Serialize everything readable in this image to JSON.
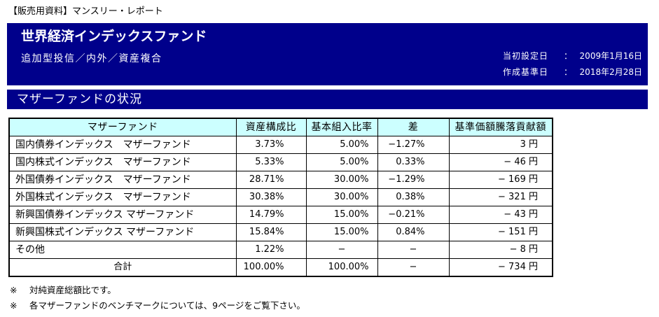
{
  "doc_label": "【販売用資料】マンスリー・レポート",
  "header": {
    "fund_name": "世界経済インデックスファンド",
    "fund_type": "追加型投信／内外／資産複合",
    "dates": [
      {
        "label": "当初設定日",
        "sep": "：",
        "value": "2009年1月16日"
      },
      {
        "label": "作成基準日",
        "sep": "：",
        "value": "2018年2月28日"
      }
    ]
  },
  "section": {
    "title": "マザーファンドの状況"
  },
  "table": {
    "columns": [
      "マザーファンド",
      "資産構成比",
      "基本組入比率",
      "差",
      "基準価額騰落貢献額"
    ],
    "rows": [
      {
        "name": "国内債券インデックス　マザーファンド",
        "asset_ratio": "3.73%",
        "base_ratio": "5.00%",
        "diff": "−1.27%",
        "contribution": "3 円"
      },
      {
        "name": "国内株式インデックス　マザーファンド",
        "asset_ratio": "5.33%",
        "base_ratio": "5.00%",
        "diff": "0.33%",
        "contribution": "− 46 円"
      },
      {
        "name": "外国債券インデックス　マザーファンド",
        "asset_ratio": "28.71%",
        "base_ratio": "30.00%",
        "diff": "−1.29%",
        "contribution": "− 169 円"
      },
      {
        "name": "外国株式インデックス　マザーファンド",
        "asset_ratio": "30.38%",
        "base_ratio": "30.00%",
        "diff": "0.38%",
        "contribution": "− 321 円"
      },
      {
        "name": "新興国債券インデックス マザーファンド",
        "asset_ratio": "14.79%",
        "base_ratio": "15.00%",
        "diff": "−0.21%",
        "contribution": "− 43 円"
      },
      {
        "name": "新興国株式インデックス マザーファンド",
        "asset_ratio": "15.84%",
        "base_ratio": "15.00%",
        "diff": "0.84%",
        "contribution": "− 151 円"
      },
      {
        "name": "その他",
        "asset_ratio": "1.22%",
        "base_ratio": "−",
        "diff": "−",
        "contribution": "− 8 円"
      }
    ],
    "total": {
      "name": "合計",
      "asset_ratio": "100.00%",
      "base_ratio": "100.00%",
      "diff": "−",
      "contribution": "− 734 円"
    }
  },
  "notes": [
    {
      "mark": "※",
      "text": "対純資産総額比です。"
    },
    {
      "mark": "※",
      "text": "各マザーファンドのベンチマークについては、9ページをご覧下さい。"
    }
  ],
  "colors": {
    "bar_navy": "#00008B",
    "table_header_bg": "#CCFFFF",
    "bar_text": "#FFFFFF"
  }
}
